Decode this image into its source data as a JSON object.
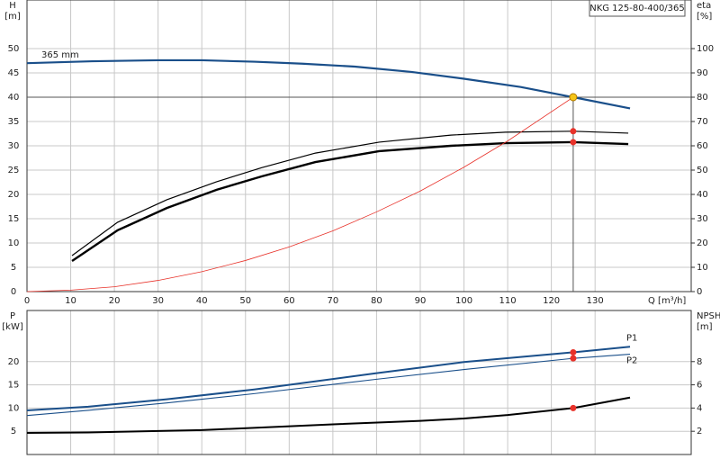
{
  "title": "NKG 125-80-400/365",
  "chart_data": [
    {
      "type": "line",
      "xlabel": "Q [m³/h]",
      "ylabel": "H",
      "yunit": "[m]",
      "y2label": "eta",
      "y2unit": "[%]",
      "xlim": [
        0,
        152
      ],
      "xticks": [
        0,
        10,
        20,
        30,
        40,
        50,
        60,
        70,
        80,
        90,
        100,
        110,
        120,
        130
      ],
      "ylim": [
        0,
        60
      ],
      "yticks": [
        0,
        5,
        10,
        15,
        20,
        25,
        30,
        35,
        40,
        45,
        50
      ],
      "y2lim": [
        0,
        120
      ],
      "y2ticks": [
        0,
        10,
        20,
        30,
        40,
        50,
        60,
        70,
        80,
        90,
        100
      ],
      "grid": true,
      "hline": 40,
      "vline": 125,
      "operating_point": {
        "x": 125,
        "y": 40,
        "color": "#f5c518"
      },
      "series": [
        {
          "name": "365 mm",
          "color": "#1a4f8a",
          "line_width": 2.2,
          "x": [
            0,
            15,
            30,
            40,
            52,
            63,
            75,
            88,
            100,
            113,
            125,
            138
          ],
          "values": [
            47,
            47.4,
            47.6,
            47.6,
            47.3,
            46.9,
            46.3,
            45.2,
            43.8,
            42.1,
            40,
            37.7
          ]
        },
        {
          "color": "#000000",
          "line_width": 1.2,
          "axis": "y2",
          "x": [
            10.3,
            20.7,
            32,
            43.4,
            53.7,
            66,
            80.6,
            97,
            109.5,
            125,
            137.6
          ],
          "values": [
            14.8,
            28.5,
            37.8,
            45.2,
            51,
            57,
            61.5,
            64.4,
            65.6,
            66,
            65.2
          ],
          "markers": [
            {
              "x": 125,
              "y": 66,
              "color": "#e8322a"
            }
          ]
        },
        {
          "color": "#000000",
          "line_width": 2.4,
          "axis": "y2",
          "x": [
            10.3,
            20.7,
            32,
            43.4,
            53.7,
            66,
            80.6,
            97,
            109.5,
            125,
            137.6
          ],
          "values": [
            12.6,
            25.2,
            34.4,
            41.9,
            47.4,
            53.3,
            57.8,
            60,
            61.1,
            61.5,
            60.7
          ],
          "markers": [
            {
              "x": 125,
              "y": 61.5,
              "color": "#e8322a"
            }
          ]
        },
        {
          "color": "#e8322a",
          "line_width": 0.8,
          "x": [
            0,
            10,
            20,
            30,
            40,
            50,
            60,
            70,
            80,
            90,
            100,
            110,
            125
          ],
          "values": [
            0,
            0.3,
            1,
            2.3,
            4.1,
            6.4,
            9.2,
            12.5,
            16.4,
            20.7,
            25.6,
            31,
            40
          ]
        }
      ]
    },
    {
      "type": "line",
      "ylabel": "P",
      "yunit": "[kW]",
      "y2label": "NPSH",
      "y2unit": "[m]",
      "xlim": [
        0,
        152
      ],
      "ylim": [
        0,
        31
      ],
      "yticks": [
        5,
        10,
        15,
        20
      ],
      "y2lim": [
        0,
        12.4
      ],
      "y2ticks": [
        2,
        4,
        6,
        8
      ],
      "grid": true,
      "series": [
        {
          "name": "P1",
          "color": "#1a4f8a",
          "line_width": 2,
          "x": [
            0,
            14,
            32,
            52,
            80,
            100,
            125,
            138
          ],
          "values": [
            9.5,
            10.3,
            11.9,
            14,
            17.5,
            19.9,
            22,
            23.2
          ],
          "markers": [
            {
              "x": 125,
              "y": 22,
              "color": "#e8322a"
            }
          ]
        },
        {
          "name": "P2",
          "color": "#1a4f8a",
          "line_width": 1.1,
          "x": [
            0,
            14,
            32,
            52,
            80,
            100,
            125,
            138
          ],
          "values": [
            8.4,
            9.5,
            11.1,
            13.1,
            16.2,
            18.3,
            20.7,
            21.6
          ],
          "markers": [
            {
              "x": 125,
              "y": 20.7,
              "color": "#e8322a"
            }
          ]
        },
        {
          "color": "#000000",
          "line_width": 2,
          "axis": "y2",
          "x": [
            0,
            14,
            40,
            70,
            90,
            100,
            110,
            125,
            138
          ],
          "values": [
            1.86,
            1.9,
            2.1,
            2.6,
            2.9,
            3.1,
            3.4,
            4,
            4.9
          ],
          "markers": [
            {
              "x": 125,
              "y": 4,
              "color": "#e8322a"
            }
          ]
        }
      ]
    }
  ]
}
